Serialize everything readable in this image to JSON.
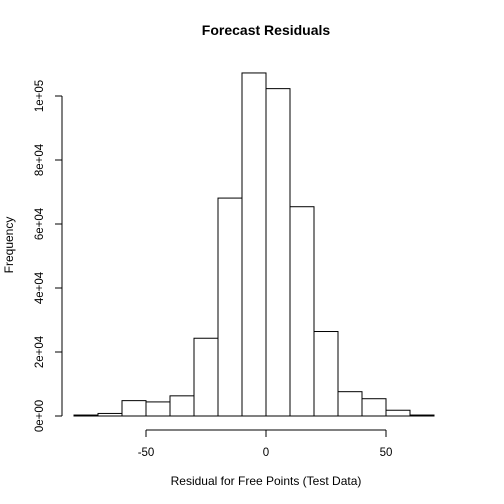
{
  "chart_data": {
    "type": "histogram",
    "title": "Forecast Residuals",
    "xlabel": "Residual for Free Points (Test Data)",
    "ylabel": "Frequency",
    "bin_width": 10,
    "bins": [
      {
        "x0": -80,
        "x1": -70,
        "count": 300
      },
      {
        "x0": -70,
        "x1": -60,
        "count": 800
      },
      {
        "x0": -60,
        "x1": -50,
        "count": 4800
      },
      {
        "x0": -50,
        "x1": -40,
        "count": 4400
      },
      {
        "x0": -40,
        "x1": -30,
        "count": 6300
      },
      {
        "x0": -30,
        "x1": -20,
        "count": 24300
      },
      {
        "x0": -20,
        "x1": -10,
        "count": 68100
      },
      {
        "x0": -10,
        "x1": 0,
        "count": 107200
      },
      {
        "x0": 0,
        "x1": 10,
        "count": 102300
      },
      {
        "x0": 10,
        "x1": 20,
        "count": 65400
      },
      {
        "x0": 20,
        "x1": 30,
        "count": 26400
      },
      {
        "x0": 30,
        "x1": 40,
        "count": 7600
      },
      {
        "x0": 40,
        "x1": 50,
        "count": 5400
      },
      {
        "x0": 50,
        "x1": 60,
        "count": 1800
      },
      {
        "x0": 60,
        "x1": 70,
        "count": 300
      },
      {
        "x0": 70,
        "x1": 80,
        "count": 0
      }
    ],
    "x_ticks": [
      -50,
      0,
      50
    ],
    "x_tick_labels": [
      "-50",
      "0",
      "50"
    ],
    "y_ticks": [
      0,
      20000,
      40000,
      60000,
      80000,
      100000
    ],
    "y_tick_labels": [
      "0e+00",
      "2e+04",
      "4e+04",
      "6e+04",
      "8e+04",
      "1e+05"
    ],
    "xlim": [
      -80,
      80
    ],
    "ylim": [
      0,
      107200
    ],
    "grid": false,
    "legend": "none"
  }
}
